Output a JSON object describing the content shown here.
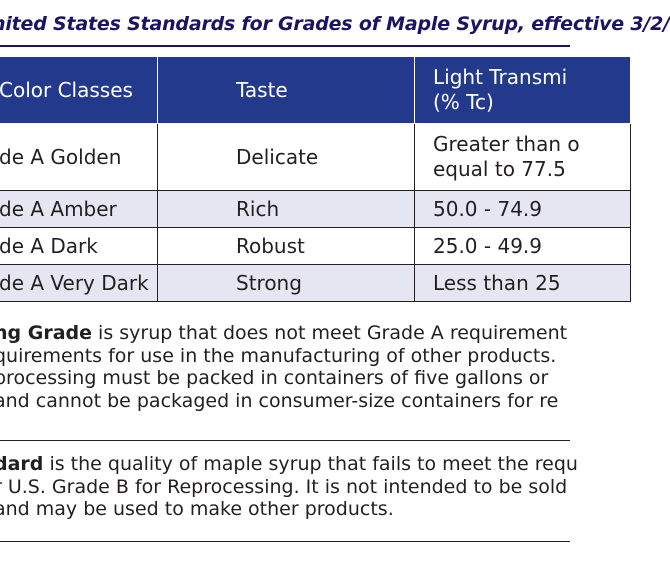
{
  "title": "nited States Standards for Grades of Maple Syrup, effective 3/2/",
  "table": {
    "headers": [
      "Color Classes",
      "Taste",
      "Light Transmi",
      "(% Tc)"
    ],
    "rows": [
      {
        "color_class": "de A Golden",
        "taste": "Delicate",
        "light_line1": "Greater than o",
        "light_line2": "equal to 77.5"
      },
      {
        "color_class": "de A Amber",
        "taste": "Rich",
        "light_line1": "50.0 - 74.9",
        "light_line2": ""
      },
      {
        "color_class": "de A Dark",
        "taste": "Robust",
        "light_line1": "25.0 - 49.9",
        "light_line2": ""
      },
      {
        "color_class": "de A Very Dark",
        "taste": "Strong",
        "light_line1": "Less than 25",
        "light_line2": ""
      }
    ]
  },
  "paragraph1": {
    "bold": "ng Grade",
    "line1_rest": " is syrup that does not meet Grade A requirement",
    "line2": "quirements for use in the manufacturing of other products.",
    "line3": " processing must be packed in containers of five gallons or",
    "line4": "and cannot be packaged in consumer-size containers for re"
  },
  "paragraph2": {
    "bold": "dard",
    "line1_rest": " is the quality of maple syrup that fails to meet the requ",
    "line2": "r U.S. Grade B for Reprocessing. It is not intended to be sold",
    "line3": "and may be used to make other products."
  },
  "colors": {
    "header_bg": "#233a8c",
    "title_color": "#1b1464",
    "alt_row_bg": "#e6e6f2",
    "text": "#231f20"
  }
}
